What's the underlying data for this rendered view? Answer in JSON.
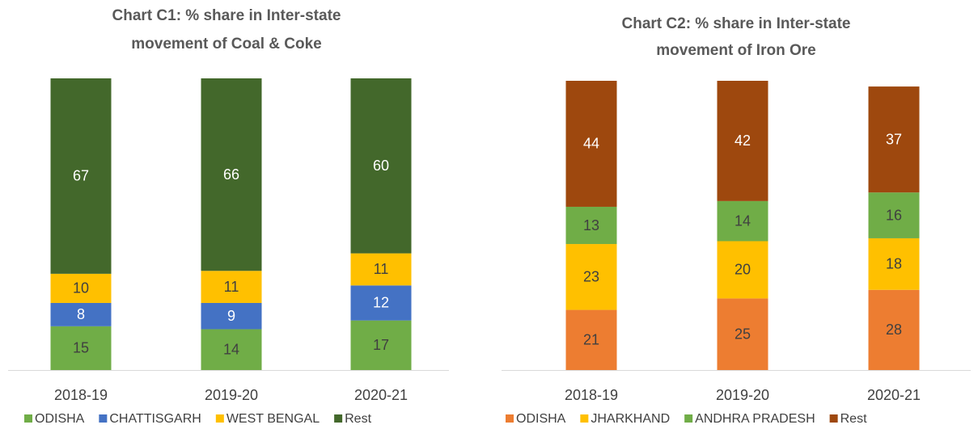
{
  "chart_data": [
    {
      "type": "stacked_bar",
      "title": [
        "Chart C1: % share in Inter-state",
        "movement of Coal & Coke"
      ],
      "categories": [
        "2018-19",
        "2019-20",
        "2020-21"
      ],
      "series": [
        {
          "name": "ODISHA",
          "color": "#70ad47",
          "values": [
            15,
            14,
            17
          ]
        },
        {
          "name": "CHATTISGARH",
          "color": "#4472c4",
          "values": [
            8,
            9,
            12
          ]
        },
        {
          "name": "WEST BENGAL",
          "color": "#ffc000",
          "values": [
            10,
            11,
            11
          ]
        },
        {
          "name": "Rest",
          "color": "#43682b",
          "values": [
            67,
            66,
            60
          ]
        }
      ],
      "legend": "bottom"
    },
    {
      "type": "stacked_bar",
      "title": [
        "Chart C2: % share in Inter-state",
        "movement of Iron Ore"
      ],
      "categories": [
        "2018-19",
        "2019-20",
        "2020-21"
      ],
      "series": [
        {
          "name": "ODISHA",
          "color": "#ed7d31",
          "values": [
            21,
            25,
            28
          ]
        },
        {
          "name": "JHARKHAND",
          "color": "#ffc000",
          "values": [
            23,
            20,
            18
          ]
        },
        {
          "name": "ANDHRA PRADESH",
          "color": "#70ad47",
          "values": [
            13,
            14,
            16
          ]
        },
        {
          "name": "Rest",
          "color": "#9e480e",
          "values": [
            44,
            42,
            37
          ]
        }
      ],
      "legend": "bottom"
    }
  ]
}
